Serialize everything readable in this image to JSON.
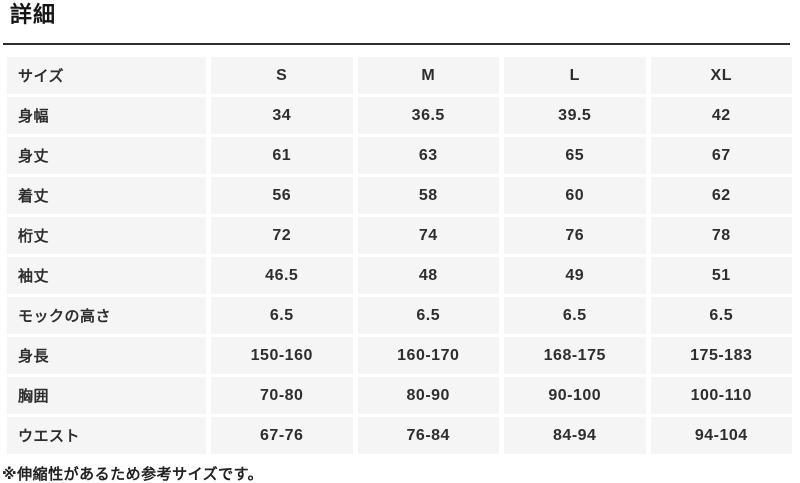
{
  "page": {
    "title": "詳細"
  },
  "size_table": {
    "header": {
      "label": "サイズ",
      "sizes": [
        "S",
        "M",
        "L",
        "XL"
      ]
    },
    "rows": [
      {
        "label": "身幅",
        "values": [
          "34",
          "36.5",
          "39.5",
          "42"
        ]
      },
      {
        "label": "身丈",
        "values": [
          "61",
          "63",
          "65",
          "67"
        ]
      },
      {
        "label": "着丈",
        "values": [
          "56",
          "58",
          "60",
          "62"
        ]
      },
      {
        "label": "桁丈",
        "values": [
          "72",
          "74",
          "76",
          "78"
        ]
      },
      {
        "label": "袖丈",
        "values": [
          "46.5",
          "48",
          "49",
          "51"
        ]
      },
      {
        "label": "モックの高さ",
        "values": [
          "6.5",
          "6.5",
          "6.5",
          "6.5"
        ]
      },
      {
        "label": "身長",
        "values": [
          "150-160",
          "160-170",
          "168-175",
          "175-183"
        ]
      },
      {
        "label": "胸囲",
        "values": [
          "70-80",
          "80-90",
          "90-100",
          "100-110"
        ]
      },
      {
        "label": "ウエスト",
        "values": [
          "67-76",
          "76-84",
          "84-94",
          "94-104"
        ]
      }
    ]
  },
  "footnote": "※伸縮性があるため参考サイズです。",
  "colors": {
    "cell_background": "#f5f5f6",
    "table_text": "#2e2e2e",
    "divider": "#2e2e2e",
    "page_background": "#ffffff"
  }
}
